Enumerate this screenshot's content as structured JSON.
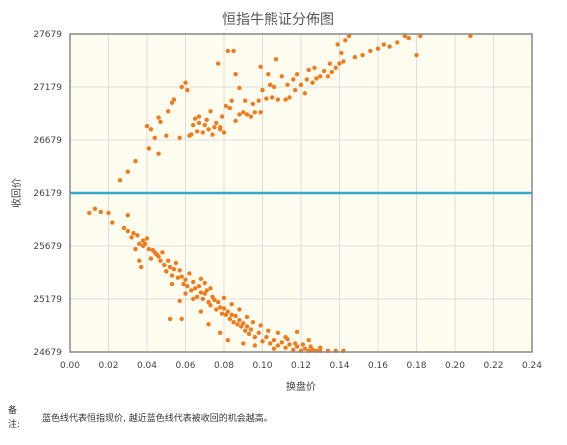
{
  "note": {
    "label": "备注:",
    "text": "蓝色线代表恒指现价, 越近蓝色线代表被收回的机会越高。"
  },
  "chart_data": {
    "type": "scatter",
    "title": "恒指牛熊证分佈图",
    "xlabel": "换盘价",
    "ylabel": "收回价",
    "xlim": [
      0,
      0.24
    ],
    "ylim": [
      24679,
      27679
    ],
    "x_ticks": [
      "0.00",
      "0.02",
      "0.04",
      "0.06",
      "0.08",
      "0.10",
      "0.12",
      "0.14",
      "0.16",
      "0.18",
      "0.20",
      "0.22",
      "0.24"
    ],
    "y_ticks": [
      "24679",
      "25179",
      "25679",
      "26179",
      "26679",
      "27179",
      "27679"
    ],
    "grid": true,
    "background": "#fffdf0",
    "point_color": "#f07b1c",
    "reference_line": {
      "value": 26179,
      "color": "#35a9c9"
    },
    "series": [
      {
        "points": [
          [
            0.01,
            25990
          ],
          [
            0.013,
            26030
          ],
          [
            0.016,
            26000
          ],
          [
            0.022,
            25900
          ],
          [
            0.026,
            26300
          ],
          [
            0.03,
            26380
          ],
          [
            0.034,
            26480
          ],
          [
            0.04,
            26810
          ],
          [
            0.041,
            26600
          ],
          [
            0.042,
            26780
          ],
          [
            0.046,
            26890
          ],
          [
            0.047,
            26850
          ],
          [
            0.051,
            26950
          ],
          [
            0.053,
            27030
          ],
          [
            0.054,
            27060
          ],
          [
            0.057,
            26700
          ],
          [
            0.058,
            27180
          ],
          [
            0.06,
            27220
          ],
          [
            0.061,
            27150
          ],
          [
            0.063,
            26730
          ],
          [
            0.064,
            26820
          ],
          [
            0.065,
            26880
          ],
          [
            0.066,
            26760
          ],
          [
            0.067,
            26900
          ],
          [
            0.069,
            26750
          ],
          [
            0.07,
            26820
          ],
          [
            0.071,
            26870
          ],
          [
            0.072,
            26780
          ],
          [
            0.073,
            26950
          ],
          [
            0.074,
            26730
          ],
          [
            0.075,
            26800
          ],
          [
            0.076,
            26840
          ],
          [
            0.078,
            26780
          ],
          [
            0.079,
            26900
          ],
          [
            0.08,
            26750
          ],
          [
            0.081,
            27000
          ],
          [
            0.082,
            27520
          ],
          [
            0.083,
            26980
          ],
          [
            0.084,
            27050
          ],
          [
            0.085,
            27520
          ],
          [
            0.086,
            26860
          ],
          [
            0.088,
            26920
          ],
          [
            0.09,
            26940
          ],
          [
            0.091,
            27050
          ],
          [
            0.092,
            26920
          ],
          [
            0.094,
            26900
          ],
          [
            0.095,
            27020
          ],
          [
            0.096,
            26940
          ],
          [
            0.098,
            27050
          ],
          [
            0.099,
            26940
          ],
          [
            0.1,
            27150
          ],
          [
            0.102,
            27070
          ],
          [
            0.104,
            27200
          ],
          [
            0.105,
            27080
          ],
          [
            0.106,
            27180
          ],
          [
            0.108,
            27060
          ],
          [
            0.11,
            27280
          ],
          [
            0.112,
            27060
          ],
          [
            0.113,
            27200
          ],
          [
            0.114,
            27080
          ],
          [
            0.116,
            27250
          ],
          [
            0.117,
            27150
          ],
          [
            0.118,
            27300
          ],
          [
            0.12,
            27200
          ],
          [
            0.122,
            27120
          ],
          [
            0.123,
            27250
          ],
          [
            0.124,
            27340
          ],
          [
            0.126,
            27220
          ],
          [
            0.127,
            27360
          ],
          [
            0.128,
            27260
          ],
          [
            0.13,
            27280
          ],
          [
            0.132,
            27330
          ],
          [
            0.134,
            27280
          ],
          [
            0.135,
            27400
          ],
          [
            0.136,
            27320
          ],
          [
            0.138,
            27360
          ],
          [
            0.139,
            27580
          ],
          [
            0.14,
            27400
          ],
          [
            0.141,
            27500
          ],
          [
            0.142,
            27420
          ],
          [
            0.143,
            27620
          ],
          [
            0.145,
            27660
          ],
          [
            0.148,
            27460
          ],
          [
            0.152,
            27480
          ],
          [
            0.156,
            27520
          ],
          [
            0.16,
            27540
          ],
          [
            0.163,
            27580
          ],
          [
            0.166,
            27560
          ],
          [
            0.17,
            27600
          ],
          [
            0.174,
            27660
          ],
          [
            0.176,
            27640
          ],
          [
            0.18,
            27480
          ],
          [
            0.182,
            27660
          ],
          [
            0.208,
            27660
          ],
          [
            0.077,
            27400
          ],
          [
            0.086,
            27300
          ],
          [
            0.088,
            27170
          ],
          [
            0.099,
            27370
          ],
          [
            0.103,
            27300
          ],
          [
            0.107,
            27440
          ],
          [
            0.044,
            26700
          ],
          [
            0.046,
            26550
          ],
          [
            0.05,
            26720
          ],
          [
            0.062,
            26720
          ],
          [
            0.067,
            26840
          ],
          [
            0.078,
            26800
          ],
          [
            0.028,
            25850
          ],
          [
            0.03,
            25970
          ],
          [
            0.03,
            25820
          ],
          [
            0.032,
            25760
          ],
          [
            0.033,
            25800
          ],
          [
            0.034,
            25650
          ],
          [
            0.035,
            25780
          ],
          [
            0.036,
            25700
          ],
          [
            0.037,
            25480
          ],
          [
            0.038,
            25730
          ],
          [
            0.039,
            25700
          ],
          [
            0.04,
            25750
          ],
          [
            0.041,
            25650
          ],
          [
            0.042,
            25560
          ],
          [
            0.043,
            25640
          ],
          [
            0.044,
            25620
          ],
          [
            0.045,
            25600
          ],
          [
            0.046,
            25580
          ],
          [
            0.047,
            25540
          ],
          [
            0.048,
            25620
          ],
          [
            0.049,
            25500
          ],
          [
            0.05,
            25440
          ],
          [
            0.051,
            25540
          ],
          [
            0.052,
            25480
          ],
          [
            0.053,
            25400
          ],
          [
            0.054,
            25460
          ],
          [
            0.055,
            25520
          ],
          [
            0.056,
            25380
          ],
          [
            0.057,
            25450
          ],
          [
            0.058,
            25390
          ],
          [
            0.059,
            25320
          ],
          [
            0.06,
            25360
          ],
          [
            0.061,
            25300
          ],
          [
            0.062,
            25420
          ],
          [
            0.063,
            25260
          ],
          [
            0.064,
            25340
          ],
          [
            0.065,
            25280
          ],
          [
            0.066,
            25200
          ],
          [
            0.067,
            25300
          ],
          [
            0.068,
            25240
          ],
          [
            0.069,
            25180
          ],
          [
            0.07,
            25230
          ],
          [
            0.071,
            25260
          ],
          [
            0.072,
            25150
          ],
          [
            0.073,
            25120
          ],
          [
            0.074,
            25200
          ],
          [
            0.075,
            25170
          ],
          [
            0.076,
            25080
          ],
          [
            0.077,
            25150
          ],
          [
            0.078,
            25100
          ],
          [
            0.079,
            25040
          ],
          [
            0.08,
            25090
          ],
          [
            0.081,
            25030
          ],
          [
            0.082,
            25060
          ],
          [
            0.083,
            24990
          ],
          [
            0.084,
            25030
          ],
          [
            0.085,
            24960
          ],
          [
            0.086,
            25020
          ],
          [
            0.087,
            24940
          ],
          [
            0.088,
            24980
          ],
          [
            0.089,
            24920
          ],
          [
            0.09,
            24950
          ],
          [
            0.091,
            24880
          ],
          [
            0.092,
            24920
          ],
          [
            0.093,
            24850
          ],
          [
            0.094,
            24890
          ],
          [
            0.096,
            24820
          ],
          [
            0.098,
            24860
          ],
          [
            0.1,
            24780
          ],
          [
            0.102,
            24820
          ],
          [
            0.104,
            24760
          ],
          [
            0.106,
            24790
          ],
          [
            0.108,
            24740
          ],
          [
            0.11,
            24770
          ],
          [
            0.112,
            24720
          ],
          [
            0.114,
            24750
          ],
          [
            0.116,
            24700
          ],
          [
            0.118,
            24730
          ],
          [
            0.12,
            24690
          ],
          [
            0.122,
            24710
          ],
          [
            0.124,
            24690
          ],
          [
            0.126,
            24700
          ],
          [
            0.128,
            24690
          ],
          [
            0.13,
            24690
          ],
          [
            0.134,
            24690
          ],
          [
            0.138,
            24690
          ],
          [
            0.142,
            24690
          ],
          [
            0.05,
            25440
          ],
          [
            0.053,
            25320
          ],
          [
            0.057,
            25160
          ],
          [
            0.06,
            25230
          ],
          [
            0.064,
            25180
          ],
          [
            0.068,
            25060
          ],
          [
            0.072,
            24940
          ],
          [
            0.078,
            24860
          ],
          [
            0.082,
            24790
          ],
          [
            0.09,
            24760
          ],
          [
            0.096,
            24740
          ],
          [
            0.106,
            24710
          ],
          [
            0.112,
            24820
          ],
          [
            0.118,
            24870
          ],
          [
            0.124,
            24790
          ],
          [
            0.13,
            24720
          ],
          [
            0.052,
            24990
          ],
          [
            0.058,
            24990
          ],
          [
            0.036,
            25540
          ],
          [
            0.038,
            25680
          ],
          [
            0.068,
            25370
          ],
          [
            0.07,
            25330
          ],
          [
            0.073,
            25280
          ],
          [
            0.08,
            25190
          ],
          [
            0.084,
            25130
          ],
          [
            0.088,
            25080
          ],
          [
            0.092,
            25010
          ],
          [
            0.095,
            24960
          ],
          [
            0.099,
            24930
          ],
          [
            0.103,
            24880
          ],
          [
            0.108,
            24860
          ],
          [
            0.113,
            24800
          ],
          [
            0.117,
            24760
          ],
          [
            0.121,
            24750
          ],
          [
            0.125,
            24730
          ],
          [
            0.02,
            25990
          ]
        ]
      }
    ]
  }
}
